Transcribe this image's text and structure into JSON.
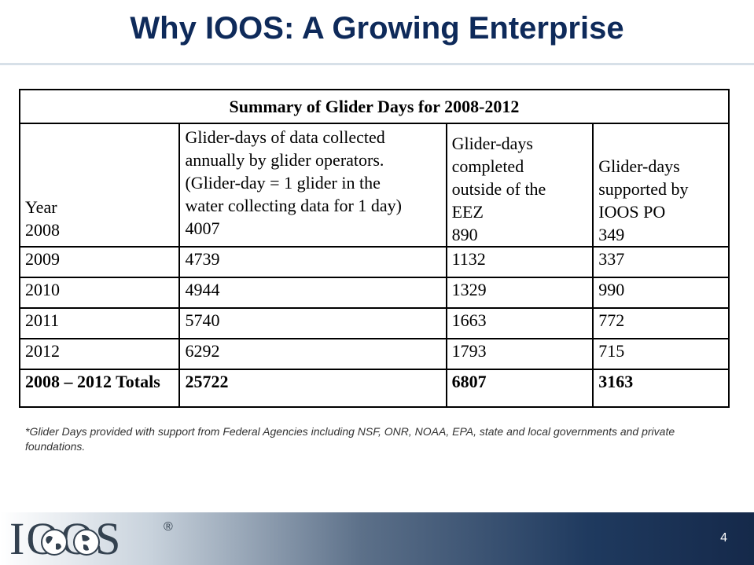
{
  "slide": {
    "title": "Why IOOS: A Growing Enterprise",
    "page_number": "4"
  },
  "table": {
    "caption": "Summary of Glider Days for 2008-2012",
    "headers": {
      "year": "Year",
      "collected": [
        "Glider-days of data collected",
        "annually by glider operators.",
        "(Glider-day = 1 glider in the",
        "water collecting data for 1 day)"
      ],
      "outside_eez": [
        "Glider-days",
        "completed",
        "outside of the",
        "EEZ"
      ],
      "ioos_po": [
        "Glider-days",
        "supported by",
        "IOOS PO"
      ]
    },
    "first_row": {
      "year": "2008",
      "collected": "4007",
      "outside_eez": "890",
      "ioos_po": "349"
    },
    "rows": [
      {
        "year": "2009",
        "collected": "4739",
        "outside_eez": "1132",
        "ioos_po": "337"
      },
      {
        "year": "2010",
        "collected": "4944",
        "outside_eez": "1329",
        "ioos_po": "990"
      },
      {
        "year": "2011",
        "collected": "5740",
        "outside_eez": "1663",
        "ioos_po": "772"
      },
      {
        "year": "2012",
        "collected": "6292",
        "outside_eez": "1793",
        "ioos_po": "715"
      }
    ],
    "totals": {
      "label": "2008 – 2012 Totals",
      "collected": "25722",
      "outside_eez": "6807",
      "ioos_po": "3163"
    }
  },
  "footnote": "*Glider Days provided with support from Federal Agencies including NSF, ONR, NOAA, EPA, state and local governments and private foundations.",
  "logo": {
    "text": "IOOS",
    "registered": "®"
  },
  "colors": {
    "title": "#0e2a5a",
    "footer_dark": "#15294a"
  }
}
